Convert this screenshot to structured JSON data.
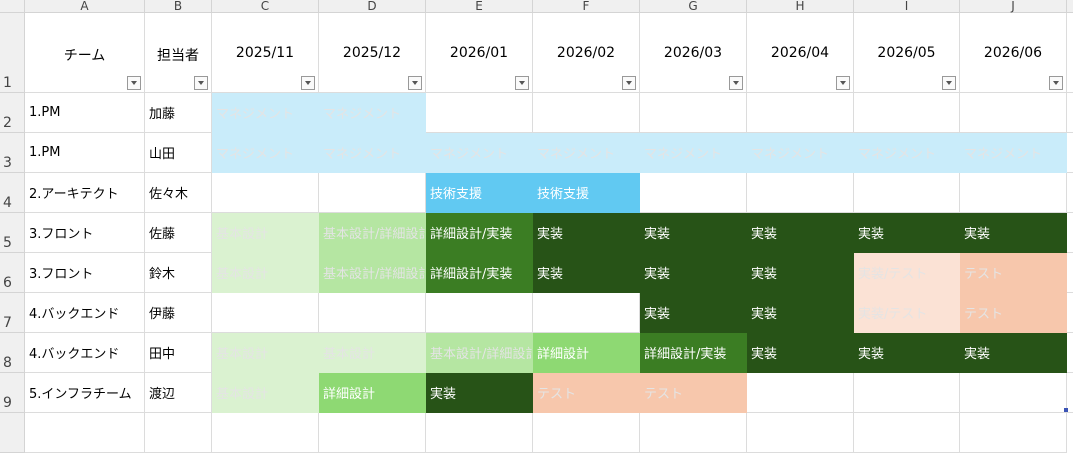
{
  "columns": [
    "A",
    "B",
    "C",
    "D",
    "E",
    "F",
    "G",
    "H",
    "I",
    "J"
  ],
  "row_numbers": [
    "1",
    "2",
    "3",
    "4",
    "5",
    "6",
    "7",
    "8",
    "9"
  ],
  "headers": [
    "チーム",
    "担当者",
    "2025/11",
    "2025/12",
    "2026/01",
    "2026/02",
    "2026/03",
    "2026/04",
    "2026/05",
    "2026/06"
  ],
  "palette": {
    "lb": "#C9ECFA",
    "bb": "#61C9F2",
    "g1": "#DAF2D0",
    "g2": "#B5E6A2",
    "g3": "#8ED973",
    "g4": "#3B7D23",
    "g5": "#275317",
    "p1": "#FBE2D5",
    "p2": "#F7C7AC"
  },
  "rows": [
    {
      "team": "1.PM",
      "owner": "加藤",
      "cells": [
        {
          "text": "マネジメント",
          "fill": "lb"
        },
        {
          "text": "マネジメント",
          "fill": "lb"
        },
        {
          "text": "",
          "fill": ""
        },
        {
          "text": "",
          "fill": ""
        },
        {
          "text": "",
          "fill": ""
        },
        {
          "text": "",
          "fill": ""
        },
        {
          "text": "",
          "fill": ""
        },
        {
          "text": "",
          "fill": ""
        }
      ]
    },
    {
      "team": "1.PM",
      "owner": "山田",
      "cells": [
        {
          "text": "マネジメント",
          "fill": "lb"
        },
        {
          "text": "マネジメント",
          "fill": "lb"
        },
        {
          "text": "マネジメント",
          "fill": "lb"
        },
        {
          "text": "マネジメント",
          "fill": "lb"
        },
        {
          "text": "マネジメント",
          "fill": "lb"
        },
        {
          "text": "マネジメント",
          "fill": "lb"
        },
        {
          "text": "マネジメント",
          "fill": "lb"
        },
        {
          "text": "マネジメント",
          "fill": "lb"
        }
      ]
    },
    {
      "team": "2.アーキテクト",
      "owner": "佐々木",
      "cells": [
        {
          "text": "",
          "fill": ""
        },
        {
          "text": "",
          "fill": ""
        },
        {
          "text": "技術支援",
          "fill": "bb"
        },
        {
          "text": "技術支援",
          "fill": "bb"
        },
        {
          "text": "",
          "fill": ""
        },
        {
          "text": "",
          "fill": ""
        },
        {
          "text": "",
          "fill": ""
        },
        {
          "text": "",
          "fill": ""
        }
      ]
    },
    {
      "team": "3.フロント",
      "owner": "佐藤",
      "cells": [
        {
          "text": "基本設計",
          "fill": "g1"
        },
        {
          "text": "基本設計/詳細設計",
          "fill": "g2"
        },
        {
          "text": "詳細設計/実装",
          "fill": "g4"
        },
        {
          "text": "実装",
          "fill": "g5"
        },
        {
          "text": "実装",
          "fill": "g5"
        },
        {
          "text": "実装",
          "fill": "g5"
        },
        {
          "text": "実装",
          "fill": "g5"
        },
        {
          "text": "実装",
          "fill": "g5"
        }
      ]
    },
    {
      "team": "3.フロント",
      "owner": "鈴木",
      "cells": [
        {
          "text": "基本設計",
          "fill": "g1"
        },
        {
          "text": "基本設計/詳細設計",
          "fill": "g2"
        },
        {
          "text": "詳細設計/実装",
          "fill": "g4"
        },
        {
          "text": "実装",
          "fill": "g5"
        },
        {
          "text": "実装",
          "fill": "g5"
        },
        {
          "text": "実装",
          "fill": "g5"
        },
        {
          "text": "実装/テスト",
          "fill": "p1"
        },
        {
          "text": "テスト",
          "fill": "p2"
        }
      ]
    },
    {
      "team": "4.バックエンド",
      "owner": "伊藤",
      "cells": [
        {
          "text": "",
          "fill": ""
        },
        {
          "text": "",
          "fill": ""
        },
        {
          "text": "",
          "fill": ""
        },
        {
          "text": "",
          "fill": ""
        },
        {
          "text": "実装",
          "fill": "g5"
        },
        {
          "text": "実装",
          "fill": "g5"
        },
        {
          "text": "実装/テスト",
          "fill": "p1"
        },
        {
          "text": "テスト",
          "fill": "p2"
        }
      ]
    },
    {
      "team": "4.バックエンド",
      "owner": "田中",
      "cells": [
        {
          "text": "基本設計",
          "fill": "g1"
        },
        {
          "text": "基本設計",
          "fill": "g1"
        },
        {
          "text": "基本設計/詳細設計",
          "fill": "g2"
        },
        {
          "text": "詳細設計",
          "fill": "g3"
        },
        {
          "text": "詳細設計/実装",
          "fill": "g4"
        },
        {
          "text": "実装",
          "fill": "g5"
        },
        {
          "text": "実装",
          "fill": "g5"
        },
        {
          "text": "実装",
          "fill": "g5"
        }
      ]
    },
    {
      "team": "5.インフラチーム",
      "owner": "渡辺",
      "cells": [
        {
          "text": "基本設計",
          "fill": "g1"
        },
        {
          "text": "詳細設計",
          "fill": "g3"
        },
        {
          "text": "実装",
          "fill": "g5"
        },
        {
          "text": "テスト",
          "fill": "p2"
        },
        {
          "text": "テスト",
          "fill": "p2"
        },
        {
          "text": "",
          "fill": ""
        },
        {
          "text": "",
          "fill": ""
        },
        {
          "text": "",
          "fill": ""
        }
      ]
    }
  ]
}
